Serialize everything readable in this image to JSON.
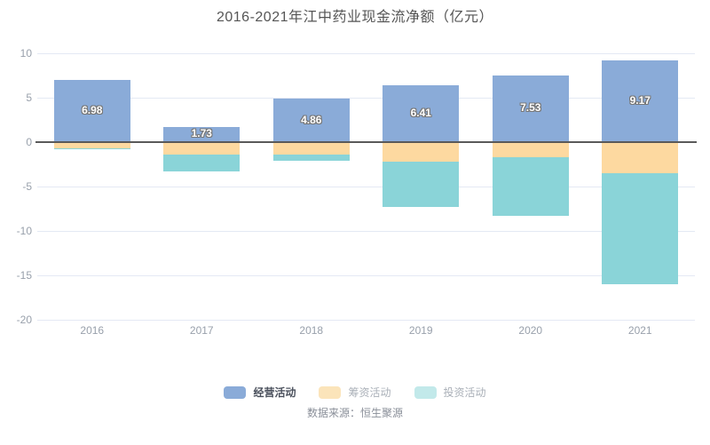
{
  "title": "2016-2021年江中药业现金流净额（亿元）",
  "source_note": "数据来源：恒生聚源",
  "colors": {
    "operating": "#8aabd8",
    "financing": "#fdd9a0",
    "investing": "#8ad4d8",
    "zero_line": "#5a5a5a",
    "grid_line": "#e4e9f4",
    "axis_text": "#98a0ab",
    "title_text": "#555555",
    "bar_label_text": "#ffffff",
    "bar_label_outline": "#777777"
  },
  "legend": {
    "items": [
      {
        "label": "经营活动",
        "swatch": "#8aabd8",
        "text_color": "#4a505c",
        "active": true
      },
      {
        "label": "筹资活动",
        "swatch": "#fbe4ba",
        "text_color": "#aab0b8",
        "active": false
      },
      {
        "label": "投资活动",
        "swatch": "#c2e9ea",
        "text_color": "#aab0b8",
        "active": false
      }
    ]
  },
  "chart_data": {
    "type": "bar",
    "stacked": true,
    "title": "2016-2021年江中药业现金流净额（亿元）",
    "xlabel": "",
    "ylabel": "",
    "categories": [
      "2016",
      "2017",
      "2018",
      "2019",
      "2020",
      "2021"
    ],
    "series": [
      {
        "name": "经营活动",
        "color": "#8aabd8",
        "values": [
          6.98,
          1.73,
          4.86,
          6.41,
          7.53,
          9.17
        ]
      },
      {
        "name": "筹资活动",
        "color": "#fdd9a0",
        "values": [
          -0.7,
          -1.4,
          -1.4,
          -2.2,
          -1.7,
          -3.5
        ]
      },
      {
        "name": "投资活动",
        "color": "#8ad4d8",
        "values": [
          -0.02,
          -1.9,
          -0.65,
          -5.1,
          -6.6,
          -12.5
        ]
      }
    ],
    "data_labels": [
      "6.98",
      "1.73",
      "4.86",
      "6.41",
      "7.53",
      "9.17"
    ],
    "ylim": [
      -20,
      10
    ],
    "yticks": [
      10,
      5,
      0,
      -5,
      -10,
      -15,
      -20
    ],
    "grid": true,
    "legend_position": "bottom"
  }
}
